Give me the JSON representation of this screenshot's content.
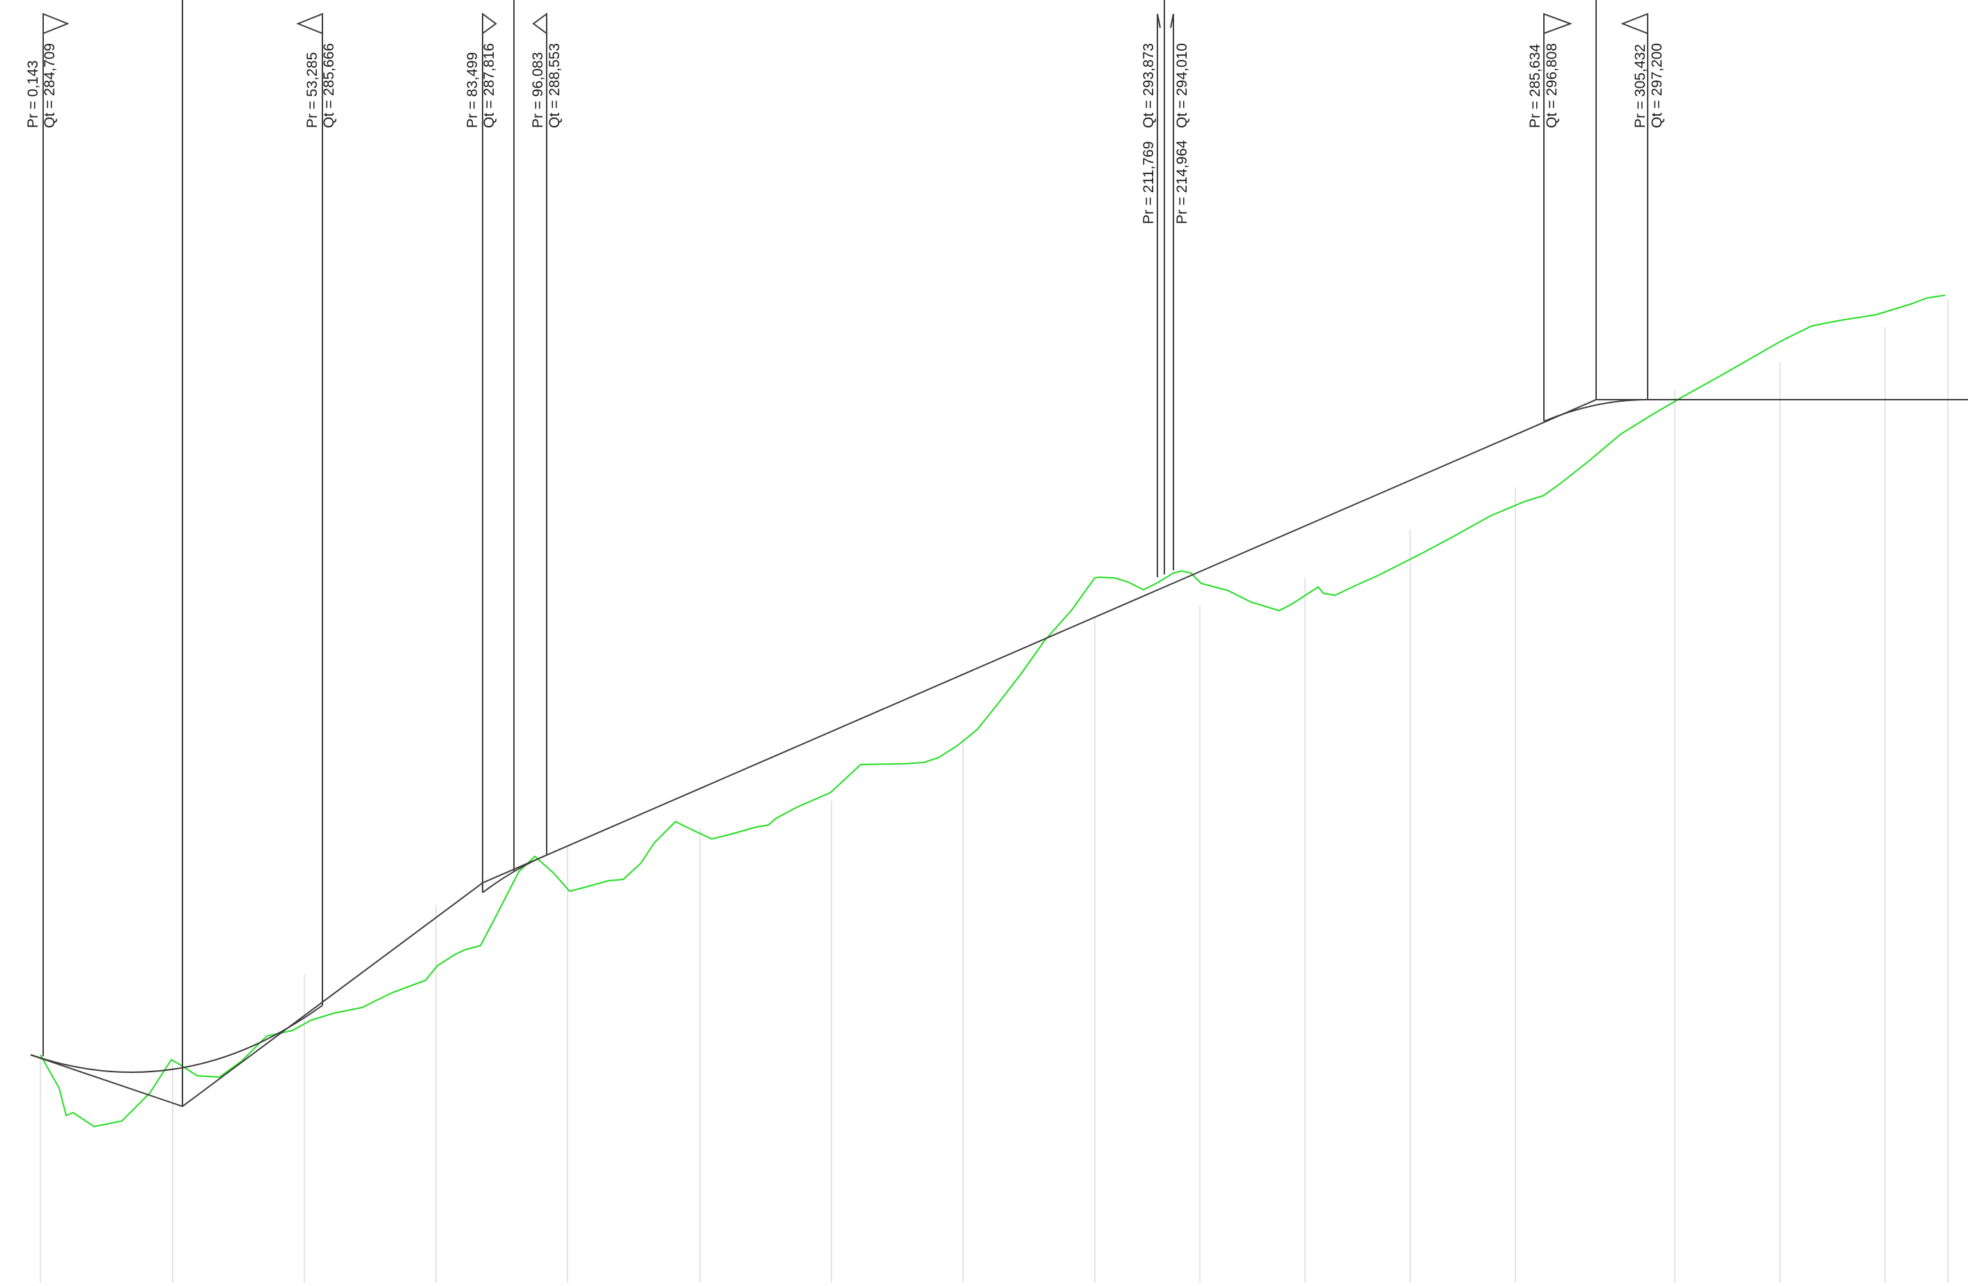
{
  "colors": {
    "background": "#ffffff",
    "grid": "#dcdcdc",
    "grade_line": "#3c3c3c",
    "ground_line": "#22dd22",
    "station_marker": "#3c3c3c",
    "text": "#1a1a1a"
  },
  "markers": [
    {
      "id": "m1",
      "pr": "Pr = 0,143",
      "qt": "Qt = 284,709",
      "triangle": "right"
    },
    {
      "id": "m2",
      "pr": "Pr = 53,285",
      "qt": "Qt = 285,666",
      "triangle": "left"
    },
    {
      "id": "m3",
      "pr": "Pr = 83,499",
      "qt": "Qt = 287,816",
      "triangle": "right"
    },
    {
      "id": "m4",
      "pr": "Pr = 96,083",
      "qt": "Qt = 288,553",
      "triangle": "left"
    },
    {
      "id": "m5",
      "pr": "Pr = 211,769",
      "qt": "Qt = 293,873",
      "triangle": "none"
    },
    {
      "id": "m6",
      "pr": "Pr = 214,964",
      "qt": "Qt = 294,010",
      "triangle": "none"
    },
    {
      "id": "m7",
      "pr": "Pr = 285,634",
      "qt": "Qt = 296,808",
      "triangle": "right"
    },
    {
      "id": "m8",
      "pr": "Pr = 305,432",
      "qt": "Qt = 297,200",
      "triangle": "left"
    }
  ]
}
